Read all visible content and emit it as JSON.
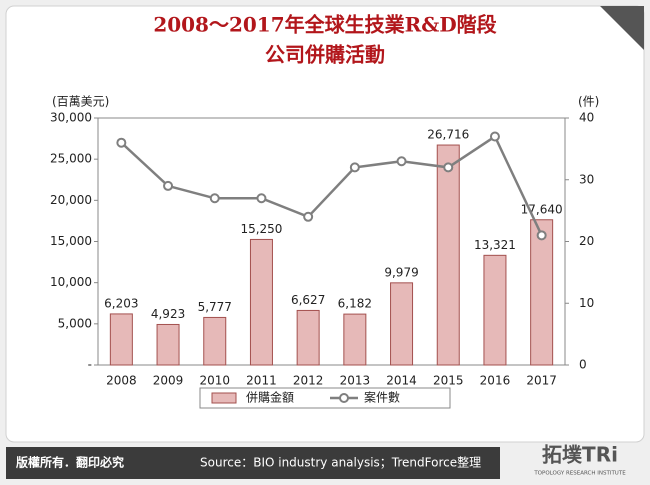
{
  "chart_data": {
    "type": "bar",
    "title": [
      "2008～2017年全球生技業R&D階段",
      "公司併購活動"
    ],
    "y_label": "(百萬美元)",
    "y2_label": "(件)",
    "categories": [
      "2008",
      "2009",
      "2010",
      "2011",
      "2012",
      "2013",
      "2014",
      "2015",
      "2016",
      "2017"
    ],
    "series": [
      {
        "name": "併購金額",
        "type": "bar",
        "color": "#e6b9b8",
        "edge": "#a3504e",
        "values": [
          6203,
          4923,
          5777,
          15250,
          6627,
          6182,
          9979,
          26716,
          13321,
          17640
        ],
        "value_labels": [
          "6,203",
          "4,923",
          "5,777",
          "15,250",
          "6,627",
          "6,182",
          "9,979",
          "26,716",
          "13,321",
          "17,640"
        ]
      },
      {
        "name": "案件數",
        "type": "line",
        "color": "#7f7f7f",
        "axis": "y2",
        "values": [
          36,
          29,
          27,
          27,
          24,
          32,
          33,
          32,
          37,
          21
        ]
      }
    ],
    "ylim": [
      0,
      30000
    ],
    "yticks": [
      {
        "value": 0,
        "label": "-"
      },
      {
        "value": 5000,
        "label": "5,000"
      },
      {
        "value": 10000,
        "label": "10,000"
      },
      {
        "value": 15000,
        "label": "15,000"
      },
      {
        "value": 20000,
        "label": "20,000"
      },
      {
        "value": 25000,
        "label": "25,000"
      },
      {
        "value": 30000,
        "label": "30,000"
      }
    ],
    "y2lim": [
      0,
      40
    ],
    "y2ticks": [
      0,
      10,
      20,
      30,
      40
    ],
    "legend": "bottom"
  },
  "footer": {
    "copyright": "版權所有．翻印必究",
    "source": "Source：BIO industry analysis；TrendForce整理",
    "logo": "拓墣TRi",
    "logo_sub": "TOPOLOGY RESEARCH INSTITUTE"
  }
}
